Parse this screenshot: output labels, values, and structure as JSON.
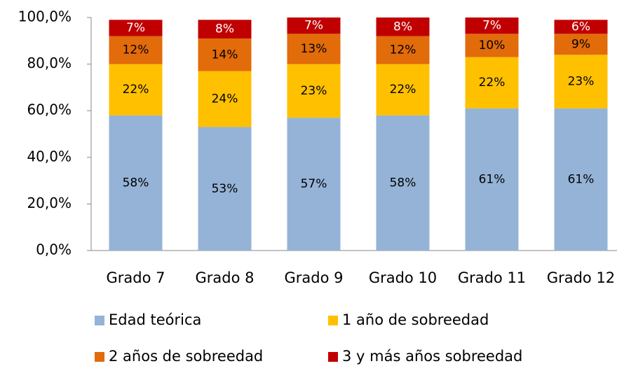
{
  "chart_data": {
    "type": "stacked_bar",
    "categories": [
      "Grado 7",
      "Grado 8",
      "Grado 9",
      "Grado 10",
      "Grado 11",
      "Grado 12"
    ],
    "series": [
      {
        "name": "Edad teórica",
        "color": "#95b3d7",
        "values": [
          58,
          53,
          57,
          58,
          61,
          61
        ],
        "value_labels": [
          "58%",
          "53%",
          "57%",
          "58%",
          "61%",
          "61%"
        ]
      },
      {
        "name": "1 año de sobreedad",
        "color": "#ffc000",
        "values": [
          22,
          24,
          23,
          22,
          22,
          23
        ],
        "value_labels": [
          "22%",
          "24%",
          "23%",
          "22%",
          "22%",
          "23%"
        ]
      },
      {
        "name": "2 años de sobreedad",
        "color": "#e26b0a",
        "values": [
          12,
          14,
          13,
          12,
          10,
          9
        ],
        "value_labels": [
          "12%",
          "14%",
          "13%",
          "12%",
          "10%",
          "9%"
        ]
      },
      {
        "name": "3 y más años sobreedad",
        "color": "#c00000",
        "values": [
          7,
          8,
          7,
          8,
          7,
          6
        ],
        "value_labels": [
          "7%",
          "8%",
          "7%",
          "8%",
          "7%",
          "6%"
        ]
      }
    ],
    "ylim": [
      0,
      100
    ],
    "yticks": [
      {
        "value": 0,
        "label": "0,0%"
      },
      {
        "value": 20,
        "label": "20,0%"
      },
      {
        "value": 40,
        "label": "40,0%"
      },
      {
        "value": 60,
        "label": "60,0%"
      },
      {
        "value": 80,
        "label": "80,0%"
      },
      {
        "value": 100,
        "label": "100,0%"
      }
    ],
    "grid": false,
    "legend": "bottom"
  }
}
